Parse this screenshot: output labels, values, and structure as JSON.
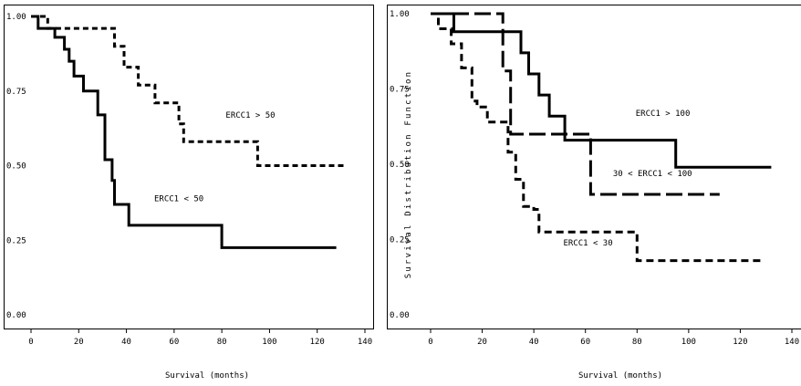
{
  "chart_data": [
    {
      "type": "line",
      "subtype": "kaplan-meier step",
      "xlabel": "Survival (months)",
      "ylabel": "",
      "xlim": [
        0,
        140
      ],
      "ylim": [
        0,
        1
      ],
      "xticks": [
        0,
        20,
        40,
        60,
        80,
        100,
        120,
        140
      ],
      "yticks": [
        "0.00",
        "0.25",
        "0.50",
        "0.75",
        "1.00"
      ],
      "series": [
        {
          "name": "ERCC1 > 50",
          "style": "short-dash",
          "x": [
            0,
            7,
            7,
            35,
            35,
            39,
            39,
            45,
            45,
            52,
            52,
            62,
            62,
            64,
            64,
            95,
            95,
            132
          ],
          "y": [
            1.0,
            1.0,
            0.96,
            0.96,
            0.9,
            0.9,
            0.83,
            0.83,
            0.77,
            0.77,
            0.71,
            0.71,
            0.64,
            0.64,
            0.58,
            0.58,
            0.5,
            0.5
          ]
        },
        {
          "name": "ERCC1 < 50",
          "style": "solid",
          "x": [
            0,
            3,
            3,
            10,
            10,
            14,
            14,
            16,
            16,
            18,
            18,
            22,
            22,
            28,
            28,
            31,
            31,
            34,
            34,
            35,
            35,
            41,
            41,
            80,
            80,
            128
          ],
          "y": [
            1.0,
            1.0,
            0.96,
            0.96,
            0.93,
            0.93,
            0.89,
            0.89,
            0.85,
            0.85,
            0.8,
            0.8,
            0.75,
            0.75,
            0.67,
            0.67,
            0.52,
            0.52,
            0.45,
            0.45,
            0.37,
            0.37,
            0.3,
            0.3,
            0.225,
            0.225
          ]
        }
      ],
      "annotations": [
        {
          "text": "ERCC1 > 50",
          "at": [
            92,
            0.66
          ]
        },
        {
          "text": "ERCC1 < 50",
          "at": [
            62,
            0.38
          ]
        }
      ]
    },
    {
      "type": "line",
      "subtype": "kaplan-meier step",
      "xlabel": "Survival (months)",
      "ylabel": "Survival Distribution Function",
      "xlim": [
        0,
        140
      ],
      "ylim": [
        0,
        1
      ],
      "xticks": [
        0,
        20,
        40,
        60,
        80,
        100,
        120,
        140
      ],
      "yticks": [
        "0.00",
        "0.25",
        "0.50",
        "0.75",
        "1.00"
      ],
      "series": [
        {
          "name": "ERCC1 > 100",
          "style": "solid",
          "x": [
            0,
            9,
            9,
            35,
            35,
            38,
            38,
            42,
            42,
            46,
            46,
            52,
            52,
            64,
            64,
            95,
            95,
            132
          ],
          "y": [
            1.0,
            1.0,
            0.94,
            0.94,
            0.87,
            0.87,
            0.8,
            0.8,
            0.73,
            0.73,
            0.66,
            0.66,
            0.58,
            0.58,
            0.58,
            0.58,
            0.49,
            0.49
          ]
        },
        {
          "name": "30 < ERCC1 < 100",
          "style": "long-dash",
          "x": [
            0,
            28,
            28,
            31,
            31,
            62,
            62,
            112
          ],
          "y": [
            1.0,
            1.0,
            0.81,
            0.81,
            0.6,
            0.6,
            0.4,
            0.4
          ]
        },
        {
          "name": "ERCC1 < 30",
          "style": "dash",
          "x": [
            0,
            3,
            3,
            8,
            8,
            12,
            12,
            16,
            16,
            18,
            18,
            22,
            22,
            30,
            30,
            33,
            33,
            36,
            36,
            40,
            40,
            42,
            42,
            80,
            80,
            128
          ],
          "y": [
            1.0,
            1.0,
            0.95,
            0.95,
            0.9,
            0.9,
            0.82,
            0.82,
            0.71,
            0.71,
            0.69,
            0.69,
            0.64,
            0.64,
            0.54,
            0.54,
            0.45,
            0.45,
            0.36,
            0.36,
            0.35,
            0.35,
            0.275,
            0.275,
            0.18,
            0.18
          ]
        }
      ],
      "annotations": [
        {
          "text": "ERCC1 > 100",
          "at": [
            90,
            0.66
          ]
        },
        {
          "text": "30 < ERCC1 < 100",
          "at": [
            86,
            0.46
          ]
        },
        {
          "text": "ERCC1 < 30",
          "at": [
            61,
            0.23
          ]
        }
      ]
    }
  ]
}
